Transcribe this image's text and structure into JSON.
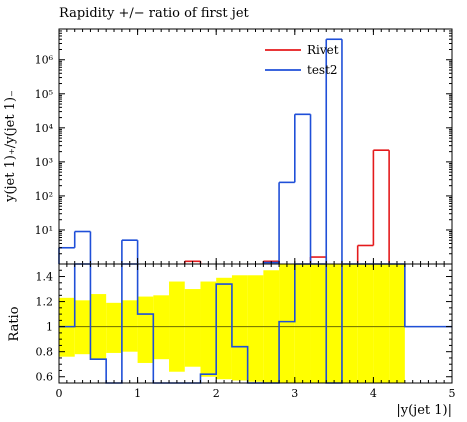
{
  "chart_data": {
    "type": "step",
    "title": "Rapidity +/− ratio of first jet",
    "xlabel": "|y(jet 1)|",
    "ylabel_top": "y(jet 1)₊/y(jet 1)₋",
    "ylabel_bottom": "Ratio",
    "legend_position": "top-right",
    "xlim": [
      0,
      5
    ],
    "x_ticks": [
      0,
      1,
      2,
      3,
      4,
      5
    ],
    "top": {
      "yscale": "log",
      "ylim": [
        1,
        8000000
      ],
      "y_ticks": [
        {
          "value": 10,
          "label": "10¹"
        },
        {
          "value": 100,
          "label": "10²"
        },
        {
          "value": 1000,
          "label": "10³"
        },
        {
          "value": 10000,
          "label": "10⁴"
        },
        {
          "value": 100000,
          "label": "10⁵"
        },
        {
          "value": 1000000,
          "label": "10⁶"
        }
      ]
    },
    "bottom": {
      "ylim": [
        0.55,
        1.5
      ],
      "y_ticks": [
        0.6,
        0.8,
        1,
        1.2,
        1.4
      ],
      "y_tick_labels": [
        "0.6",
        "0.8",
        "1",
        "1.2",
        "1.4"
      ],
      "band_color": "#ffff00",
      "band_edges": [
        0,
        0.2,
        0.4,
        0.6,
        0.8,
        1.0,
        1.2,
        1.4,
        1.6,
        1.8,
        2.0,
        2.2,
        2.4,
        2.6,
        2.8,
        3.0,
        3.2,
        3.4,
        3.6,
        3.8,
        4.0,
        4.2,
        4.4
      ],
      "band_lower": [
        0.76,
        0.78,
        0.74,
        0.79,
        0.8,
        0.71,
        0.74,
        0.64,
        0.68,
        0.6,
        0.58,
        0.57,
        0.56,
        0.52,
        0.5,
        0.5,
        0.5,
        0.5,
        0.5,
        0.5,
        0.5,
        0.5
      ],
      "band_upper": [
        1.23,
        1.21,
        1.26,
        1.19,
        1.21,
        1.24,
        1.25,
        1.36,
        1.3,
        1.36,
        1.39,
        1.41,
        1.41,
        1.45,
        1.5,
        1.5,
        1.5,
        1.5,
        1.5,
        1.5,
        1.5,
        1.5
      ]
    },
    "bin_edges": [
      0,
      0.2,
      0.4,
      0.6,
      0.8,
      1.0,
      1.2,
      1.4,
      1.6,
      1.8,
      2.0,
      2.2,
      2.4,
      2.6,
      2.8,
      3.0,
      3.2,
      3.4,
      3.6,
      3.8,
      4.0,
      4.2,
      4.4,
      5.0
    ],
    "series": [
      {
        "name": "Rivet",
        "color": "#e41a1c",
        "values": [
          null,
          null,
          null,
          null,
          null,
          null,
          null,
          null,
          1.2,
          null,
          null,
          null,
          null,
          1.2,
          null,
          null,
          1.6,
          null,
          null,
          3.5,
          2200,
          null,
          null
        ]
      },
      {
        "name": "test2",
        "color": "#1f4fd8",
        "values": [
          3,
          9,
          null,
          null,
          5,
          null,
          null,
          null,
          null,
          null,
          null,
          null,
          null,
          1.1,
          250,
          25000,
          null,
          4000000,
          null,
          null,
          null,
          null,
          null
        ],
        "ratio": [
          1.0,
          1.65,
          0.74,
          0.45,
          1.65,
          1.1,
          0.5,
          0.5,
          0.5,
          0.62,
          1.34,
          0.84,
          0.5,
          0.5,
          1.04,
          1.6,
          1.6,
          0.5,
          1.6,
          1.6,
          1.6,
          1.6,
          1.0
        ]
      }
    ]
  }
}
